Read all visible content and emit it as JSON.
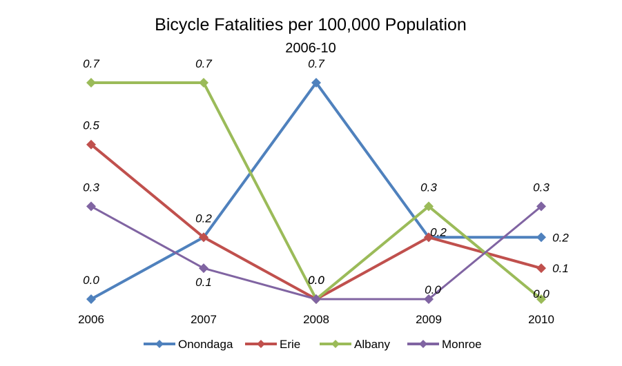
{
  "chart_data": {
    "type": "line",
    "title": "Bicycle Fatalities per 100,000 Population",
    "subtitle": "2006-10",
    "xlabel": "",
    "ylabel": "",
    "categories": [
      "2006",
      "2007",
      "2008",
      "2009",
      "2010"
    ],
    "ylim": [
      0,
      0.7
    ],
    "grid": false,
    "legend_position": "bottom",
    "series": [
      {
        "name": "Onondaga",
        "color": "#4F81BD",
        "values": [
          0.0,
          0.2,
          0.7,
          0.2,
          0.2
        ],
        "labels": [
          "0.0",
          "0.2",
          "0.7",
          "",
          "0.2"
        ]
      },
      {
        "name": "Erie",
        "color": "#C0504D",
        "values": [
          0.5,
          0.2,
          0.0,
          0.2,
          0.1
        ],
        "labels": [
          "0.5",
          "",
          "0.0",
          "0.2",
          "0.1"
        ]
      },
      {
        "name": "Albany",
        "color": "#9BBB59",
        "values": [
          0.7,
          0.7,
          0.0,
          0.3,
          0.0
        ],
        "labels": [
          "0.7",
          "0.7",
          "0.0",
          "0.3",
          "0.0"
        ]
      },
      {
        "name": "Monroe",
        "color": "#8064A2",
        "values": [
          0.3,
          0.1,
          0.0,
          0.0,
          0.3
        ],
        "labels": [
          "0.3",
          "0.1",
          "",
          "0.0",
          "0.3"
        ]
      }
    ]
  }
}
